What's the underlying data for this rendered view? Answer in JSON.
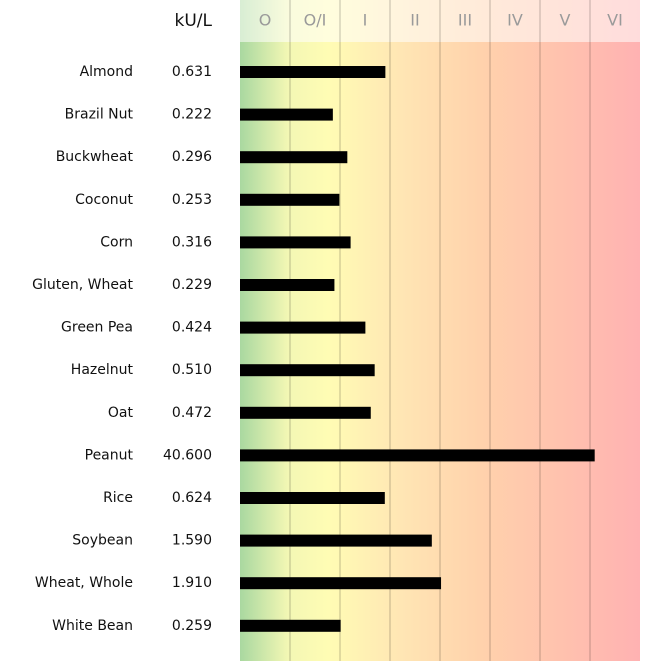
{
  "chart_data": {
    "type": "bar",
    "orientation": "horizontal",
    "unit_label": "kU/L",
    "classes": [
      "O",
      "O/I",
      "I",
      "II",
      "III",
      "IV",
      "V",
      "VI"
    ],
    "categories": [
      "Almond",
      "Brazil Nut",
      "Buckwheat",
      "Coconut",
      "Corn",
      "Gluten, Wheat",
      "Green Pea",
      "Hazelnut",
      "Oat",
      "Peanut",
      "Rice",
      "Soybean",
      "Wheat, Whole",
      "White Bean"
    ],
    "values": [
      0.631,
      0.222,
      0.296,
      0.253,
      0.316,
      0.229,
      0.424,
      0.51,
      0.472,
      40.6,
      0.624,
      1.59,
      1.91,
      0.259
    ],
    "value_labels": [
      "0.631",
      "0.222",
      "0.296",
      "0.253",
      "0.316",
      "0.229",
      "0.424",
      "0.510",
      "0.472",
      "40.600",
      "0.624",
      "1.590",
      "1.910",
      "0.259"
    ],
    "color": "#000000",
    "xscale": "log",
    "xlim": [
      0.035,
      100
    ]
  }
}
